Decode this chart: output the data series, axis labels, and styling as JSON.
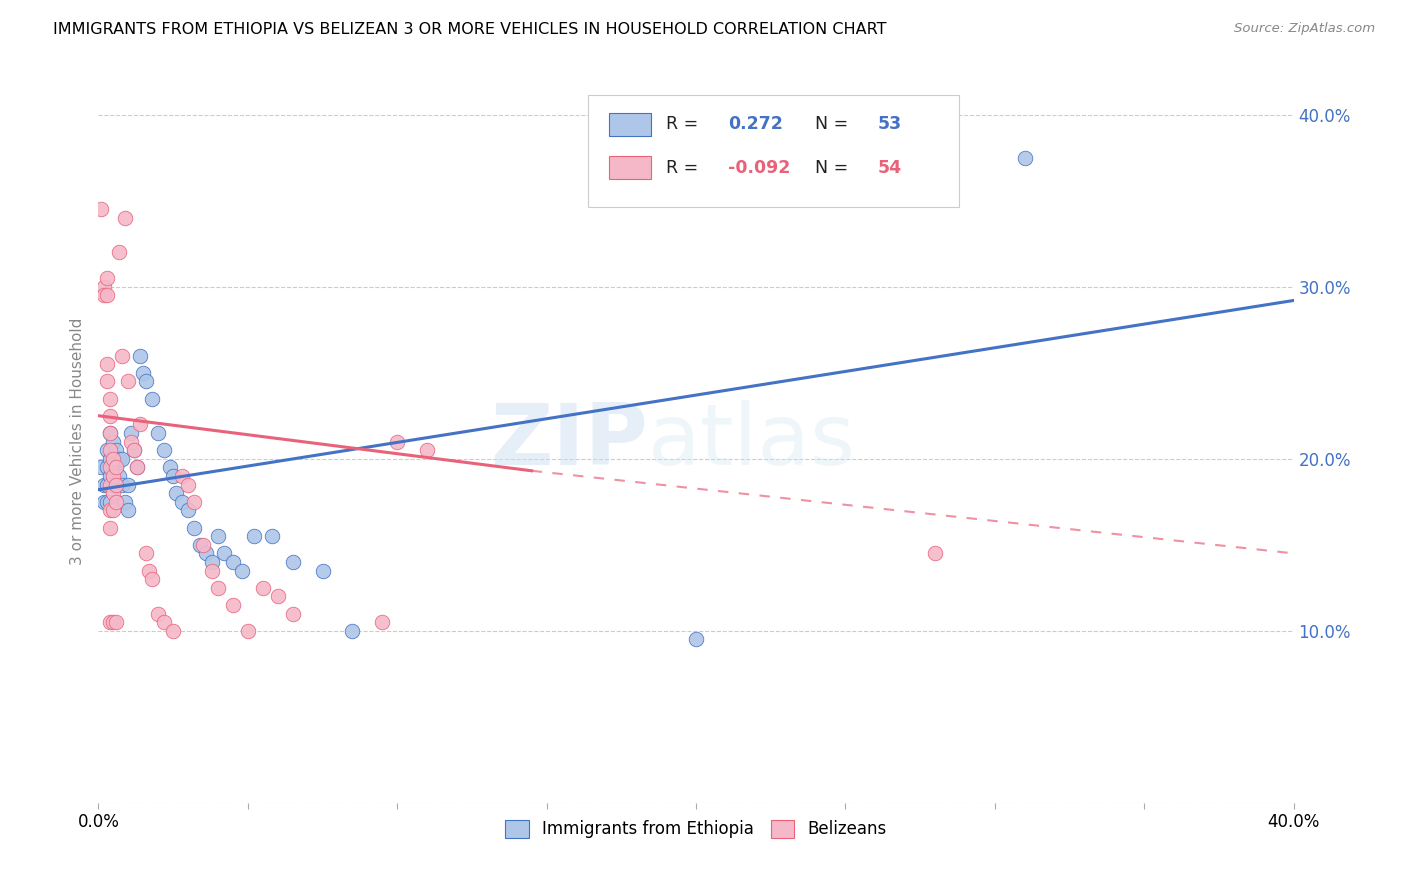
{
  "title": "IMMIGRANTS FROM ETHIOPIA VS BELIZEAN 3 OR MORE VEHICLES IN HOUSEHOLD CORRELATION CHART",
  "source": "Source: ZipAtlas.com",
  "ylabel": "3 or more Vehicles in Household",
  "xlim": [
    0.0,
    0.4
  ],
  "ylim": [
    0.0,
    0.42
  ],
  "legend_blue_label": "Immigrants from Ethiopia",
  "legend_pink_label": "Belizeans",
  "R_blue": 0.272,
  "N_blue": 53,
  "R_pink": -0.092,
  "N_pink": 54,
  "blue_color": "#aec6e8",
  "pink_color": "#f5b8c8",
  "blue_line_color": "#4472c4",
  "pink_line_color": "#e8627a",
  "watermark_zip": "ZIP",
  "watermark_atlas": "atlas",
  "ytick_vals": [
    0.0,
    0.1,
    0.2,
    0.3,
    0.4
  ],
  "ytick_labels": [
    "",
    "10.0%",
    "20.0%",
    "30.0%",
    "40.0%"
  ],
  "blue_scatter": [
    [
      0.001,
      0.195
    ],
    [
      0.002,
      0.185
    ],
    [
      0.002,
      0.175
    ],
    [
      0.003,
      0.205
    ],
    [
      0.003,
      0.195
    ],
    [
      0.003,
      0.185
    ],
    [
      0.003,
      0.175
    ],
    [
      0.004,
      0.215
    ],
    [
      0.004,
      0.2
    ],
    [
      0.004,
      0.19
    ],
    [
      0.004,
      0.175
    ],
    [
      0.005,
      0.21
    ],
    [
      0.005,
      0.195
    ],
    [
      0.005,
      0.185
    ],
    [
      0.006,
      0.205
    ],
    [
      0.006,
      0.195
    ],
    [
      0.006,
      0.185
    ],
    [
      0.007,
      0.2
    ],
    [
      0.007,
      0.19
    ],
    [
      0.008,
      0.2
    ],
    [
      0.008,
      0.185
    ],
    [
      0.009,
      0.175
    ],
    [
      0.01,
      0.185
    ],
    [
      0.01,
      0.17
    ],
    [
      0.011,
      0.215
    ],
    [
      0.012,
      0.205
    ],
    [
      0.013,
      0.195
    ],
    [
      0.014,
      0.26
    ],
    [
      0.015,
      0.25
    ],
    [
      0.016,
      0.245
    ],
    [
      0.018,
      0.235
    ],
    [
      0.02,
      0.215
    ],
    [
      0.022,
      0.205
    ],
    [
      0.024,
      0.195
    ],
    [
      0.025,
      0.19
    ],
    [
      0.026,
      0.18
    ],
    [
      0.028,
      0.175
    ],
    [
      0.03,
      0.17
    ],
    [
      0.032,
      0.16
    ],
    [
      0.034,
      0.15
    ],
    [
      0.036,
      0.145
    ],
    [
      0.038,
      0.14
    ],
    [
      0.04,
      0.155
    ],
    [
      0.042,
      0.145
    ],
    [
      0.045,
      0.14
    ],
    [
      0.048,
      0.135
    ],
    [
      0.052,
      0.155
    ],
    [
      0.058,
      0.155
    ],
    [
      0.065,
      0.14
    ],
    [
      0.075,
      0.135
    ],
    [
      0.085,
      0.1
    ],
    [
      0.2,
      0.095
    ],
    [
      0.31,
      0.375
    ]
  ],
  "pink_scatter": [
    [
      0.001,
      0.345
    ],
    [
      0.002,
      0.3
    ],
    [
      0.002,
      0.295
    ],
    [
      0.003,
      0.305
    ],
    [
      0.003,
      0.295
    ],
    [
      0.003,
      0.255
    ],
    [
      0.003,
      0.245
    ],
    [
      0.004,
      0.235
    ],
    [
      0.004,
      0.225
    ],
    [
      0.004,
      0.215
    ],
    [
      0.004,
      0.205
    ],
    [
      0.004,
      0.195
    ],
    [
      0.004,
      0.185
    ],
    [
      0.004,
      0.17
    ],
    [
      0.004,
      0.16
    ],
    [
      0.004,
      0.105
    ],
    [
      0.005,
      0.2
    ],
    [
      0.005,
      0.19
    ],
    [
      0.005,
      0.18
    ],
    [
      0.005,
      0.17
    ],
    [
      0.005,
      0.105
    ],
    [
      0.006,
      0.195
    ],
    [
      0.006,
      0.185
    ],
    [
      0.006,
      0.175
    ],
    [
      0.006,
      0.105
    ],
    [
      0.007,
      0.32
    ],
    [
      0.008,
      0.26
    ],
    [
      0.009,
      0.34
    ],
    [
      0.01,
      0.245
    ],
    [
      0.011,
      0.21
    ],
    [
      0.012,
      0.205
    ],
    [
      0.013,
      0.195
    ],
    [
      0.014,
      0.22
    ],
    [
      0.016,
      0.145
    ],
    [
      0.017,
      0.135
    ],
    [
      0.018,
      0.13
    ],
    [
      0.02,
      0.11
    ],
    [
      0.022,
      0.105
    ],
    [
      0.025,
      0.1
    ],
    [
      0.028,
      0.19
    ],
    [
      0.03,
      0.185
    ],
    [
      0.032,
      0.175
    ],
    [
      0.035,
      0.15
    ],
    [
      0.038,
      0.135
    ],
    [
      0.04,
      0.125
    ],
    [
      0.045,
      0.115
    ],
    [
      0.05,
      0.1
    ],
    [
      0.055,
      0.125
    ],
    [
      0.06,
      0.12
    ],
    [
      0.065,
      0.11
    ],
    [
      0.095,
      0.105
    ],
    [
      0.1,
      0.21
    ],
    [
      0.11,
      0.205
    ],
    [
      0.28,
      0.145
    ]
  ]
}
